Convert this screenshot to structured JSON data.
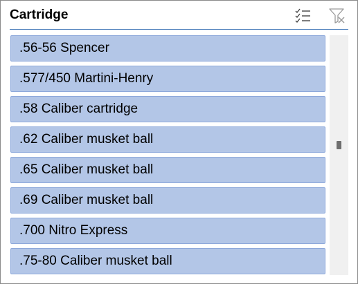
{
  "slicer": {
    "title": "Cartridge",
    "items": [
      {
        "label": ".56-56 Spencer",
        "selected": true
      },
      {
        "label": ".577/450 Martini-Henry",
        "selected": true
      },
      {
        "label": ".58 Caliber cartridge",
        "selected": true
      },
      {
        "label": ".62 Caliber musket ball",
        "selected": true
      },
      {
        "label": ".65 Caliber musket ball",
        "selected": true
      },
      {
        "label": ".69 Caliber musket ball",
        "selected": true
      },
      {
        "label": ".700 Nitro Express",
        "selected": true
      },
      {
        "label": ".75-80 Caliber musket ball",
        "selected": true
      }
    ],
    "icons": {
      "multi_select": "multi-select-icon",
      "clear_filter": "clear-filter-icon"
    },
    "colors": {
      "item_fill": "#b3c6e7",
      "item_border": "#8ea9db",
      "header_line": "#4f81bd"
    }
  }
}
